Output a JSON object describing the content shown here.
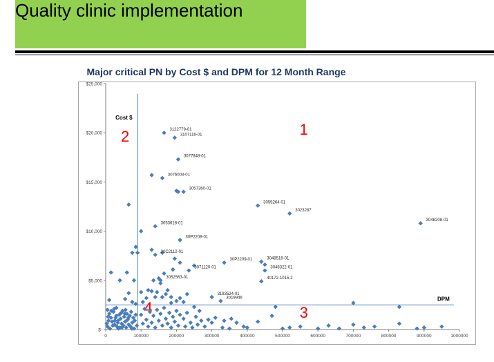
{
  "slide": {
    "title": "Quality clinic implementation"
  },
  "colors": {
    "band": "#92d050",
    "marker": "#4a7ebb",
    "quadrant": "#ff0000",
    "title": "#1f3864"
  },
  "chart_data": {
    "type": "scatter",
    "title": "Major critical  PN by Cost $  and DPM for 12 Month Range",
    "xlabel": "",
    "ylabel": "",
    "xlim": [
      0,
      1000000
    ],
    "ylim": [
      0,
      25000
    ],
    "x_ticks": [
      0,
      100000,
      200000,
      300000,
      400000,
      500000,
      600000,
      700000,
      800000,
      900000,
      1000000
    ],
    "x_tick_labels": [
      "0",
      "100000",
      "200000",
      "300000",
      "400000",
      "500000",
      "600000",
      "700000",
      "800000",
      "900000",
      "1000000"
    ],
    "y_ticks": [
      0,
      5000,
      10000,
      15000,
      20000,
      25000
    ],
    "y_tick_labels": [
      "$-",
      "$5,000",
      "$10,000",
      "$15,000",
      "$20,000",
      "$25,000"
    ],
    "threshold_lines": [
      {
        "name": "Cost $",
        "axis": "x",
        "value": 90000
      },
      {
        "name": "DPM",
        "axis": "y",
        "value": 2500
      }
    ],
    "quadrant_labels": [
      {
        "text": "1",
        "x": 560000,
        "y": 19800
      },
      {
        "text": "2",
        "x": 55000,
        "y": 19100
      },
      {
        "text": "3",
        "x": 560000,
        "y": 1200
      },
      {
        "text": "4",
        "x": 120000,
        "y": 1700
      }
    ],
    "labeled_points": [
      {
        "label": "3122779-01",
        "x": 165000,
        "y": 20000
      },
      {
        "label": "3107116-01",
        "x": 195000,
        "y": 19500
      },
      {
        "label": "3077848-01",
        "x": 205000,
        "y": 17300
      },
      {
        "label": "3076003-01",
        "x": 160000,
        "y": 15400
      },
      {
        "label": "3057360-01",
        "x": 220000,
        "y": 14000
      },
      {
        "label": "3053618-01",
        "x": 140000,
        "y": 10500
      },
      {
        "label": "30P2208-01",
        "x": 210000,
        "y": 9100
      },
      {
        "label": "30C2112-01",
        "x": 140000,
        "y": 7600
      },
      {
        "label": "3071120-01",
        "x": 235000,
        "y": 6000
      },
      {
        "label": "3052563-01",
        "x": 155000,
        "y": 5000
      },
      {
        "label": "30P2209-01",
        "x": 335000,
        "y": 6800
      },
      {
        "label": "3183524-01",
        "x": 300000,
        "y": 3300
      },
      {
        "label": "3019946",
        "x": 325000,
        "y": 2900
      },
      {
        "label": "3048516-01",
        "x": 440000,
        "y": 6900
      },
      {
        "label": "3048322-01",
        "x": 450000,
        "y": 6000
      },
      {
        "label": "40172-1015-2",
        "x": 440000,
        "y": 4900
      },
      {
        "label": "3055264-01",
        "x": 430000,
        "y": 12600
      },
      {
        "label": "3023287",
        "x": 520000,
        "y": 11800
      },
      {
        "label": "3048208-01",
        "x": 890000,
        "y": 10800
      }
    ],
    "points": [
      [
        65000,
        12700
      ],
      [
        100000,
        10000
      ],
      [
        130000,
        15700
      ],
      [
        200000,
        14100
      ],
      [
        205000,
        14000
      ],
      [
        85000,
        8400
      ],
      [
        75000,
        7800
      ],
      [
        90000,
        7800
      ],
      [
        130000,
        8100
      ],
      [
        160000,
        7800
      ],
      [
        195000,
        7200
      ],
      [
        210000,
        6800
      ],
      [
        450000,
        6600
      ],
      [
        250000,
        6500
      ],
      [
        15000,
        5800
      ],
      [
        60000,
        5800
      ],
      [
        165000,
        5700
      ],
      [
        190000,
        6100
      ],
      [
        40000,
        5000
      ],
      [
        80000,
        5000
      ],
      [
        135000,
        5000
      ],
      [
        150000,
        5200
      ],
      [
        155000,
        4700
      ],
      [
        100000,
        3800
      ],
      [
        120000,
        4000
      ],
      [
        130000,
        3900
      ],
      [
        145000,
        3800
      ],
      [
        170000,
        3600
      ],
      [
        175000,
        4000
      ],
      [
        210000,
        3200
      ],
      [
        230000,
        3600
      ],
      [
        200000,
        2900
      ],
      [
        220000,
        2800
      ],
      [
        115000,
        3200
      ],
      [
        105000,
        2800
      ],
      [
        140000,
        3300
      ],
      [
        160000,
        3300
      ],
      [
        185000,
        3300
      ],
      [
        10000,
        3000
      ],
      [
        30000,
        2200
      ],
      [
        55000,
        3100
      ],
      [
        65000,
        3700
      ],
      [
        75000,
        2800
      ],
      [
        85000,
        2600
      ],
      [
        480000,
        2300
      ],
      [
        700000,
        2700
      ],
      [
        830000,
        2300
      ],
      [
        5000,
        2000
      ],
      [
        10000,
        1600
      ],
      [
        15000,
        1200
      ],
      [
        18000,
        800
      ],
      [
        22000,
        1800
      ],
      [
        25000,
        500
      ],
      [
        28000,
        1200
      ],
      [
        32000,
        300
      ],
      [
        35000,
        900
      ],
      [
        38000,
        1500
      ],
      [
        40000,
        200
      ],
      [
        42000,
        1100
      ],
      [
        45000,
        600
      ],
      [
        48000,
        1900
      ],
      [
        50000,
        400
      ],
      [
        52000,
        1300
      ],
      [
        55000,
        800
      ],
      [
        58000,
        200
      ],
      [
        60000,
        1600
      ],
      [
        62000,
        1000
      ],
      [
        65000,
        500
      ],
      [
        68000,
        1400
      ],
      [
        70000,
        300
      ],
      [
        72000,
        1800
      ],
      [
        75000,
        700
      ],
      [
        78000,
        1200
      ],
      [
        80000,
        100
      ],
      [
        82000,
        900
      ],
      [
        85000,
        1500
      ],
      [
        88000,
        400
      ],
      [
        5000,
        300
      ],
      [
        8000,
        900
      ],
      [
        12000,
        100
      ],
      [
        20000,
        400
      ],
      [
        26000,
        900
      ],
      [
        30000,
        1400
      ],
      [
        36000,
        100
      ],
      [
        44000,
        1700
      ],
      [
        46000,
        200
      ],
      [
        54000,
        1600
      ],
      [
        64000,
        1200
      ],
      [
        74000,
        100
      ],
      [
        3000,
        600
      ],
      [
        7000,
        1300
      ],
      [
        16000,
        1900
      ],
      [
        24000,
        2100
      ],
      [
        34000,
        700
      ],
      [
        56000,
        2000
      ],
      [
        100000,
        1500
      ],
      [
        105000,
        600
      ],
      [
        110000,
        2100
      ],
      [
        115000,
        1000
      ],
      [
        120000,
        300
      ],
      [
        125000,
        1800
      ],
      [
        130000,
        700
      ],
      [
        135000,
        1400
      ],
      [
        140000,
        200
      ],
      [
        145000,
        2000
      ],
      [
        150000,
        900
      ],
      [
        155000,
        1600
      ],
      [
        160000,
        400
      ],
      [
        165000,
        2200
      ],
      [
        170000,
        1100
      ],
      [
        175000,
        600
      ],
      [
        180000,
        1700
      ],
      [
        185000,
        200
      ],
      [
        190000,
        1300
      ],
      [
        195000,
        800
      ],
      [
        200000,
        1900
      ],
      [
        205000,
        400
      ],
      [
        210000,
        1500
      ],
      [
        220000,
        1100
      ],
      [
        225000,
        300
      ],
      [
        230000,
        1700
      ],
      [
        240000,
        700
      ],
      [
        245000,
        200
      ],
      [
        255000,
        1300
      ],
      [
        260000,
        500
      ],
      [
        270000,
        900
      ],
      [
        280000,
        300
      ],
      [
        290000,
        1000
      ],
      [
        300000,
        700
      ],
      [
        310000,
        1200
      ],
      [
        330000,
        200
      ],
      [
        335000,
        900
      ],
      [
        350000,
        100
      ],
      [
        355000,
        1100
      ],
      [
        370000,
        700
      ],
      [
        390000,
        300
      ],
      [
        400000,
        200
      ],
      [
        430000,
        800
      ],
      [
        470000,
        1400
      ],
      [
        500000,
        100
      ],
      [
        520000,
        200
      ],
      [
        550000,
        300
      ],
      [
        600000,
        100
      ],
      [
        630000,
        400
      ],
      [
        660000,
        100
      ],
      [
        700000,
        500
      ],
      [
        730000,
        200
      ],
      [
        760000,
        300
      ],
      [
        830000,
        600
      ],
      [
        880000,
        100
      ],
      [
        900000,
        200
      ],
      [
        950000,
        300
      ],
      [
        250000,
        2300
      ],
      [
        265000,
        1900
      ],
      [
        185000,
        2700
      ]
    ]
  }
}
